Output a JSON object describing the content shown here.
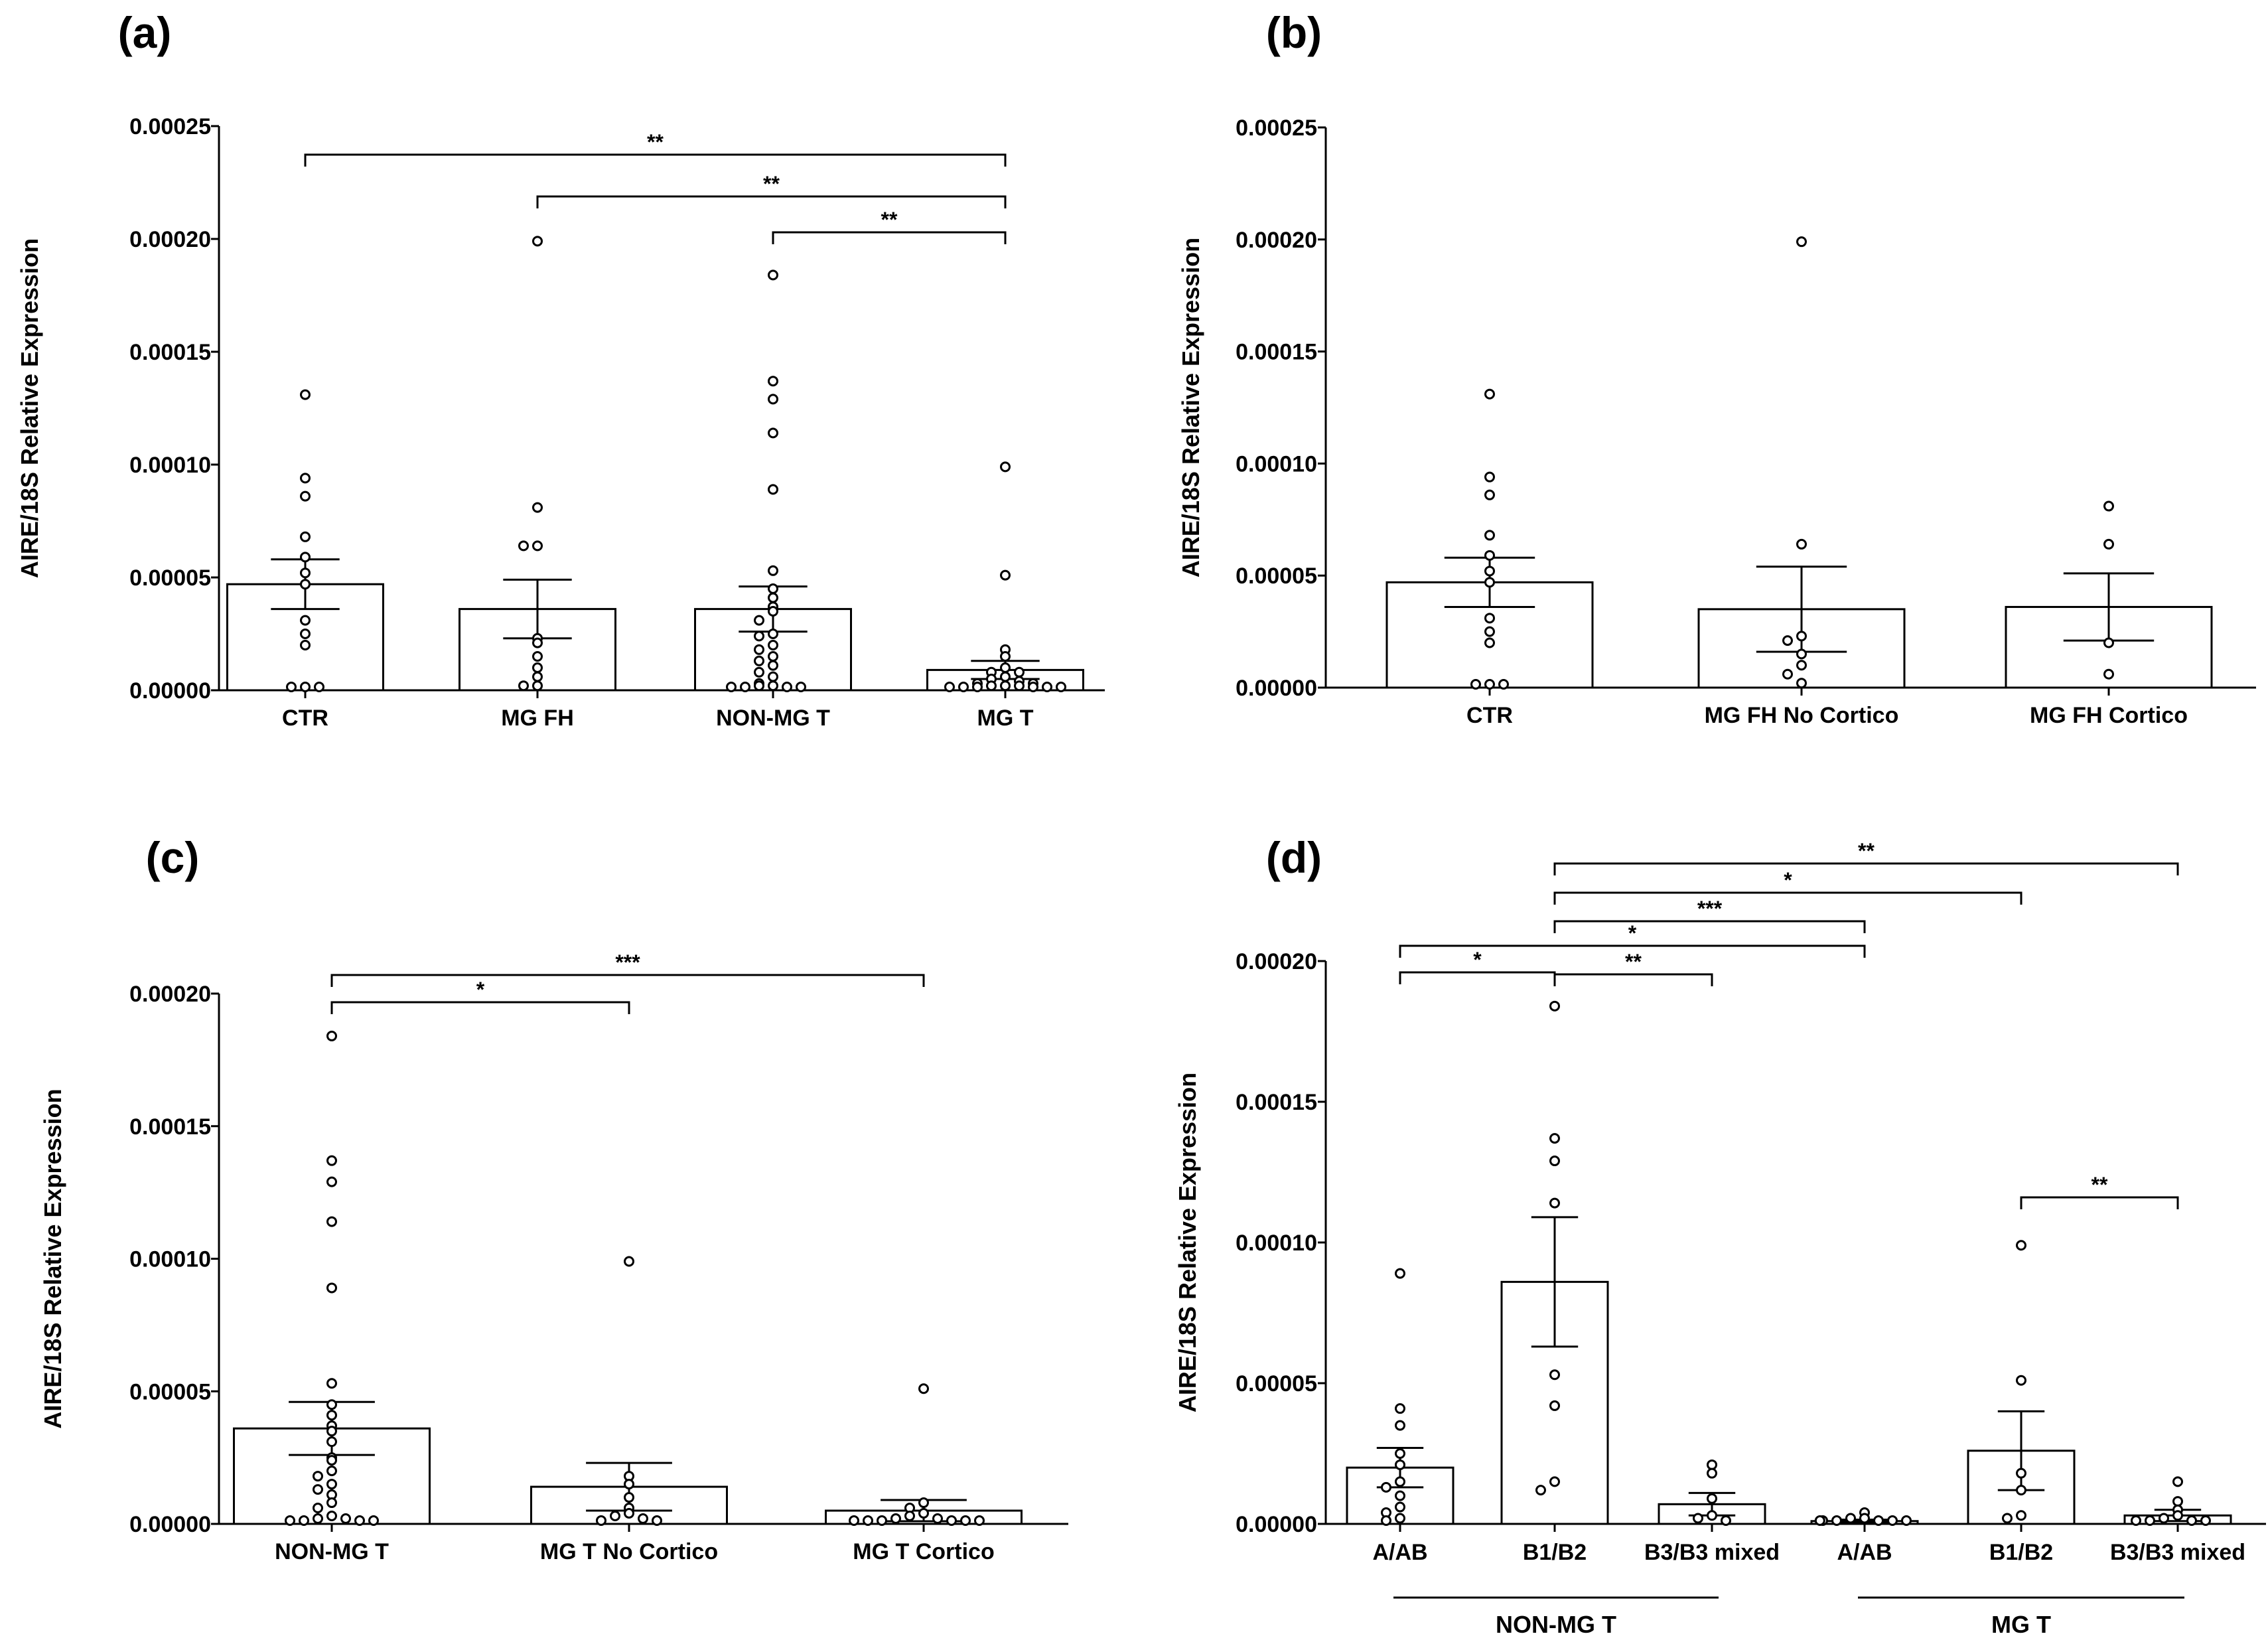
{
  "chart_data": [
    {
      "panel": "(a)",
      "type": "bar",
      "ylabel": "AIRE/18S Relative Expression",
      "ylim": [
        0,
        0.00025
      ],
      "yticks": [
        "0.00000",
        "0.00005",
        "0.00010",
        "0.00015",
        "0.00020",
        "0.00025"
      ],
      "categories": [
        "CTR",
        "MG FH",
        "NON-MG T",
        "MG T"
      ],
      "means": [
        4.7e-05,
        3.6e-05,
        3.6e-05,
        9e-06
      ],
      "sem": [
        1.1e-05,
        1.3e-05,
        1e-05,
        4e-06
      ],
      "points": [
        [
          0.000131,
          9.4e-05,
          8.6e-05,
          6.8e-05,
          5.9e-05,
          5.2e-05,
          4.7e-05,
          3.1e-05,
          2.5e-05,
          2e-05,
          0,
          0,
          0
        ],
        [
          0.000199,
          8.1e-05,
          6.4e-05,
          6.4e-05,
          2.3e-05,
          2.1e-05,
          1.5e-05,
          1e-05,
          6e-06,
          2e-06,
          2e-06
        ],
        [
          0.000184,
          0.000137,
          0.000129,
          0.000114,
          8.9e-05,
          5.3e-05,
          4.5e-05,
          4.1e-05,
          3.7e-05,
          3.5e-05,
          3.1e-05,
          2.5e-05,
          2.4e-05,
          2e-05,
          1.8e-05,
          1.5e-05,
          1.3e-05,
          1.1e-05,
          8e-06,
          6e-06,
          3e-06,
          2e-06,
          2e-06,
          1e-06,
          1e-06,
          1e-06,
          1e-06
        ],
        [
          9.9e-05,
          5.1e-05,
          1.8e-05,
          1.5e-05,
          1e-05,
          8e-06,
          8e-06,
          6e-06,
          5e-06,
          4e-06,
          3e-06,
          3e-06,
          2e-06,
          2e-06,
          2e-06,
          1e-06,
          1e-06,
          1e-06,
          1e-06,
          1e-06,
          1e-06
        ]
      ],
      "significance": [
        {
          "from": 0,
          "to": 3,
          "label": "**"
        },
        {
          "from": 1,
          "to": 3,
          "label": "**"
        },
        {
          "from": 2,
          "to": 3,
          "label": "**"
        }
      ]
    },
    {
      "panel": "(b)",
      "type": "bar",
      "ylabel": "AIRE/18S Relative Expression",
      "ylim": [
        0,
        0.00025
      ],
      "yticks": [
        "0.00000",
        "0.00005",
        "0.00010",
        "0.00015",
        "0.00020",
        "0.00025"
      ],
      "categories": [
        "CTR",
        "MG FH No Cortico",
        "MG FH Cortico"
      ],
      "means": [
        4.7e-05,
        3.5e-05,
        3.6e-05
      ],
      "sem": [
        1.1e-05,
        1.9e-05,
        1.5e-05
      ],
      "points": [
        [
          0.000131,
          9.4e-05,
          8.6e-05,
          6.8e-05,
          5.9e-05,
          5.2e-05,
          4.7e-05,
          3.1e-05,
          2.5e-05,
          2e-05,
          0,
          0,
          0
        ],
        [
          0.000199,
          6.4e-05,
          2.3e-05,
          2.1e-05,
          1.5e-05,
          1e-05,
          6e-06,
          2e-06
        ],
        [
          8.1e-05,
          6.4e-05,
          2e-05,
          6e-06
        ]
      ],
      "significance": []
    },
    {
      "panel": "(c)",
      "type": "bar",
      "ylabel": "AIRE/18S Relative Expression",
      "ylim": [
        0,
        0.0002
      ],
      "yticks": [
        "0.00000",
        "0.00005",
        "0.00010",
        "0.00015",
        "0.00020"
      ],
      "categories": [
        "NON-MG T",
        "MG T No Cortico",
        "MG T Cortico"
      ],
      "means": [
        3.6e-05,
        1.4e-05,
        5e-06
      ],
      "sem": [
        1e-05,
        9e-06,
        4e-06
      ],
      "points": [
        [
          0.000184,
          0.000137,
          0.000129,
          0.000114,
          8.9e-05,
          5.3e-05,
          4.5e-05,
          4.1e-05,
          3.7e-05,
          3.5e-05,
          3.1e-05,
          2.5e-05,
          2.4e-05,
          2e-05,
          1.8e-05,
          1.5e-05,
          1.3e-05,
          1.1e-05,
          8e-06,
          6e-06,
          3e-06,
          2e-06,
          2e-06,
          1e-06,
          1e-06,
          1e-06,
          1e-06
        ],
        [
          9.9e-05,
          1.8e-05,
          1.5e-05,
          1e-05,
          6e-06,
          4e-06,
          3e-06,
          2e-06,
          1e-06,
          1e-06
        ],
        [
          5.1e-05,
          8e-06,
          6e-06,
          4e-06,
          3e-06,
          2e-06,
          2e-06,
          1e-06,
          1e-06,
          1e-06,
          1e-06,
          1e-06,
          1e-06
        ]
      ],
      "significance": [
        {
          "from": 0,
          "to": 1,
          "label": "*"
        },
        {
          "from": 0,
          "to": 2,
          "label": "***"
        }
      ]
    },
    {
      "panel": "(d)",
      "type": "bar",
      "ylabel": "AIRE/18S Relative Expression",
      "ylim": [
        0,
        0.0002
      ],
      "yticks": [
        "0.00000",
        "0.00005",
        "0.00010",
        "0.00015",
        "0.00020"
      ],
      "categories": [
        "A/AB",
        "B1/B2",
        "B3/B3 mixed",
        "A/AB",
        "B1/B2",
        "B3/B3 mixed"
      ],
      "groups": [
        {
          "label": "NON-MG T",
          "from": 0,
          "to": 2
        },
        {
          "label": "MG T",
          "from": 3,
          "to": 5
        }
      ],
      "means": [
        2e-05,
        8.6e-05,
        7e-06,
        1e-06,
        2.6e-05,
        3e-06
      ],
      "sem": [
        7e-06,
        2.3e-05,
        4e-06,
        5e-07,
        1.4e-05,
        2e-06
      ],
      "points": [
        [
          8.9e-05,
          4.1e-05,
          3.5e-05,
          2.5e-05,
          2.1e-05,
          1.5e-05,
          1.3e-05,
          1e-05,
          6e-06,
          4e-06,
          2e-06,
          1e-06
        ],
        [
          0.000184,
          0.000137,
          0.000129,
          0.000114,
          5.3e-05,
          4.2e-05,
          1.5e-05,
          1.2e-05
        ],
        [
          2.1e-05,
          1.8e-05,
          9e-06,
          3e-06,
          2e-06,
          1e-06
        ],
        [
          4e-06,
          2e-06,
          2e-06,
          1e-06,
          1e-06,
          1e-06,
          1e-06,
          1e-06,
          1e-06
        ],
        [
          9.9e-05,
          5.1e-05,
          1.8e-05,
          1.2e-05,
          3e-06,
          2e-06
        ],
        [
          1.5e-05,
          8e-06,
          5e-06,
          3e-06,
          2e-06,
          1e-06,
          1e-06,
          1e-06,
          1e-06
        ]
      ],
      "significance": [
        {
          "from": 1,
          "to": 5,
          "label": "**"
        },
        {
          "from": 1,
          "to": 4,
          "label": "*"
        },
        {
          "from": 1,
          "to": 3,
          "label": "***"
        },
        {
          "from": 0,
          "to": 3,
          "label": "*"
        },
        {
          "from": 0,
          "to": 1,
          "label": "*"
        },
        {
          "from": 1,
          "to": 2,
          "label": "**"
        },
        {
          "from": 4,
          "to": 5,
          "label": "**"
        }
      ]
    }
  ]
}
